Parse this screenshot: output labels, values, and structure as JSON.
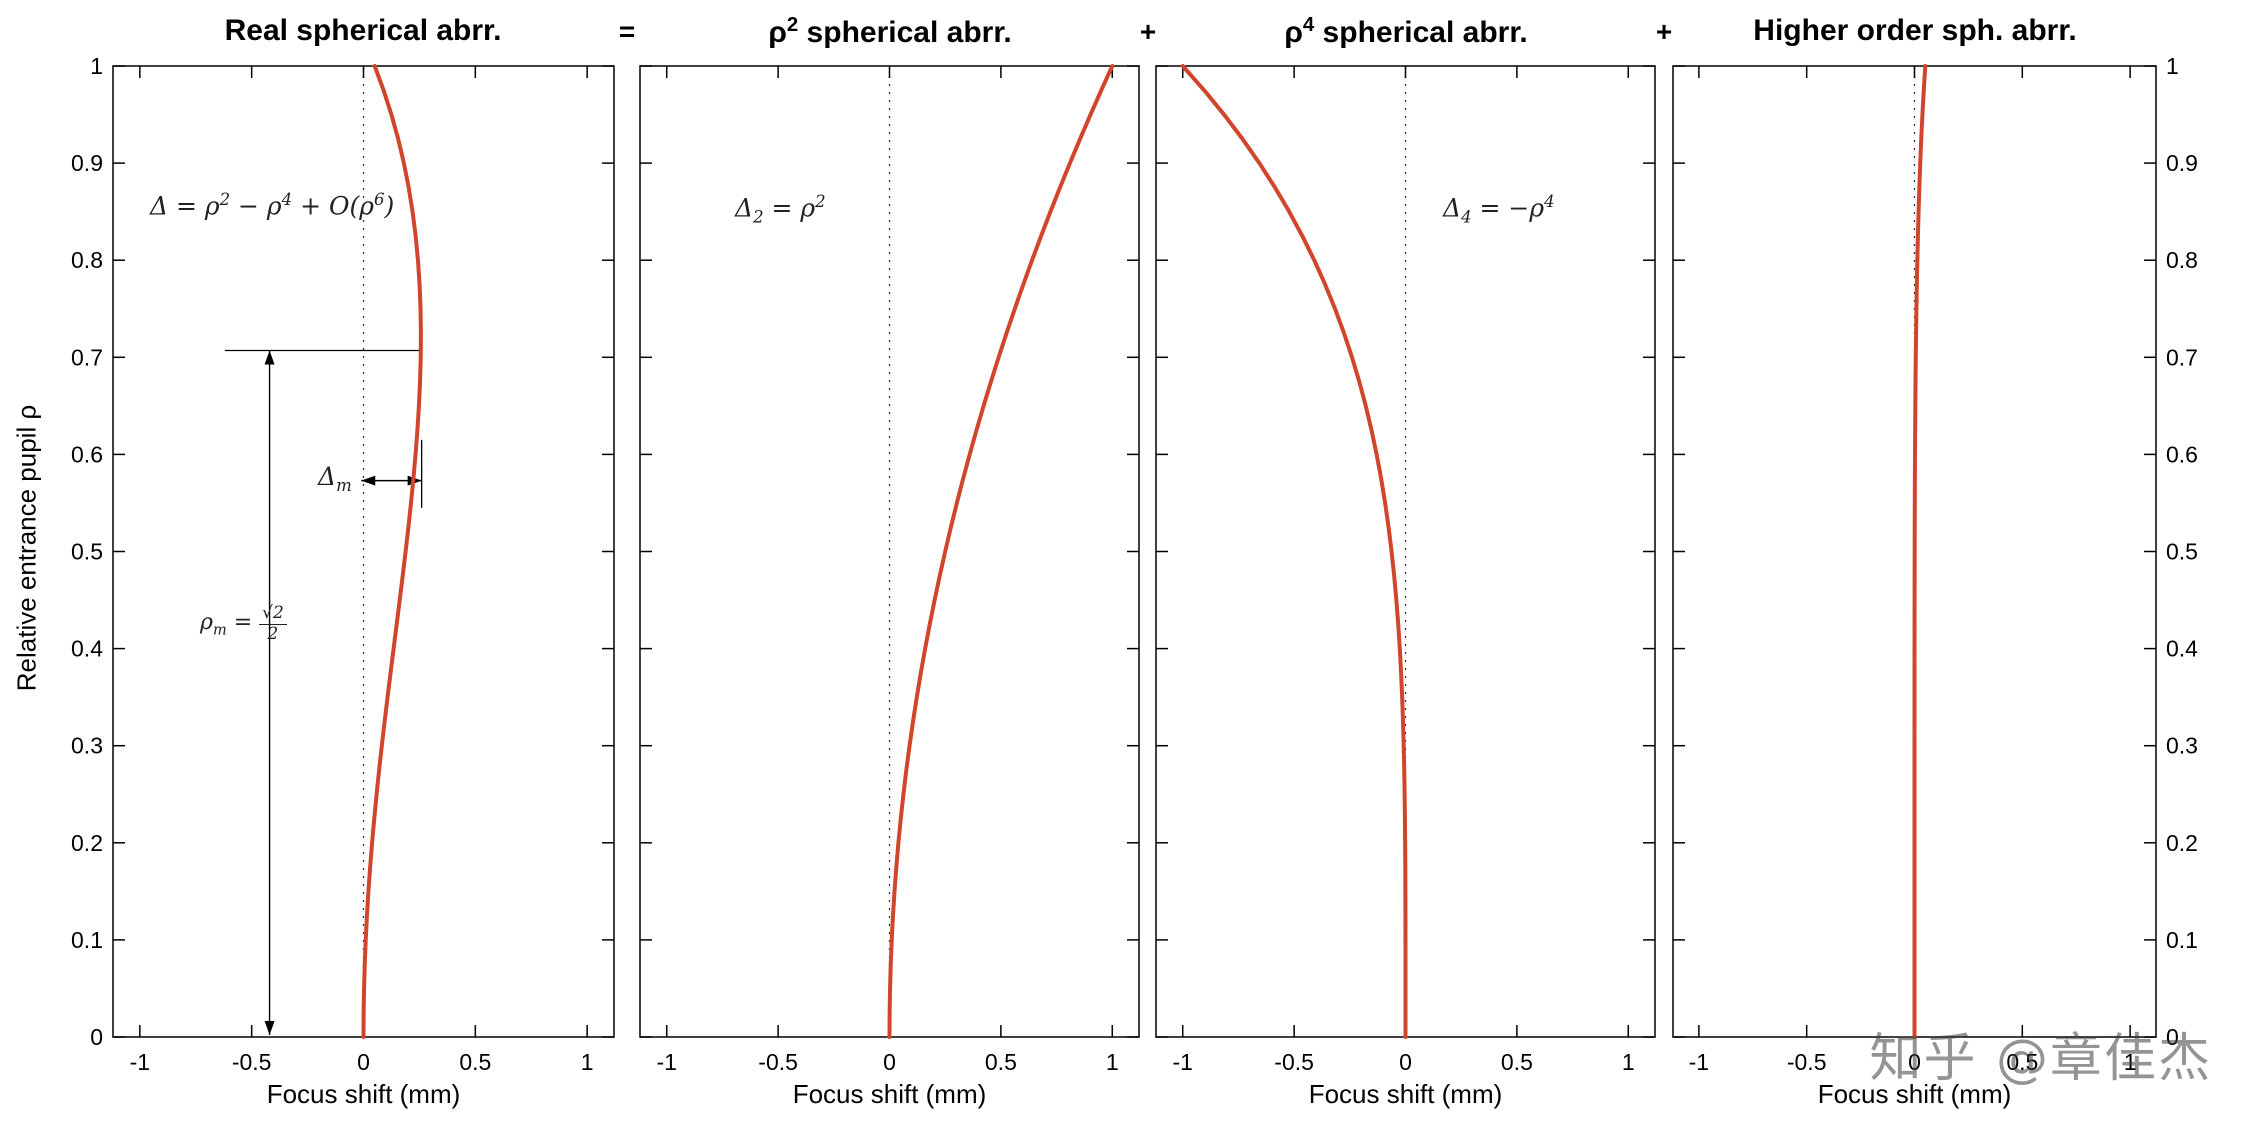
{
  "operators": [
    "=",
    "+",
    "+"
  ],
  "ylabel": "Relative entrance pupil ρ",
  "watermark": "知乎 @章佳杰",
  "curve_color": "#d0452b",
  "chart_data": [
    {
      "type": "line",
      "title": "Real spherical abrr.",
      "xlabel": "Focus shift (mm)",
      "xlim": [
        -1.12,
        1.12
      ],
      "ylim": [
        0,
        1
      ],
      "xticks": [
        -1,
        -0.5,
        0,
        0.5,
        1
      ],
      "xtick_labels": [
        "-1",
        "-0.5",
        "0",
        "0.5",
        "1"
      ],
      "yticks": [
        0,
        0.1,
        0.2,
        0.3,
        0.4,
        0.5,
        0.6,
        0.7,
        0.8,
        0.9,
        1
      ],
      "ytick_labels": [
        "0",
        "0.1",
        "0.2",
        "0.3",
        "0.4",
        "0.5",
        "0.6",
        "0.7",
        "0.8",
        "0.9",
        "1"
      ],
      "zero_line": true,
      "annotation": {
        "text": "Δ = ρ² − ρ⁴ + O(ρ⁶)"
      },
      "extras": {
        "delta_m_label": "Δₘ",
        "rho_m_prefix": "ρₘ =",
        "frac_num": "√2",
        "frac_den": "2",
        "hline": {
          "x1": -0.62,
          "x2": 0.256,
          "y": 0.707
        },
        "varrow": {
          "x": -0.42,
          "y1": 0,
          "y2": 0.707
        },
        "harrow": {
          "y": 0.573,
          "x1": -0.01,
          "x2": 0.26
        },
        "vtick": {
          "x": 0.26,
          "y1": 0.545,
          "y2": 0.615
        }
      },
      "series": [
        {
          "name": "Δ(ρ) = ρ² − ρ⁴ + O(ρ⁶)",
          "rho": [
            0,
            0.025,
            0.05,
            0.075,
            0.1,
            0.125,
            0.15,
            0.175,
            0.2,
            0.225,
            0.25,
            0.275,
            0.3,
            0.325,
            0.35,
            0.375,
            0.4,
            0.425,
            0.45,
            0.475,
            0.5,
            0.525,
            0.55,
            0.575,
            0.6,
            0.625,
            0.65,
            0.675,
            0.7,
            0.725,
            0.75,
            0.775,
            0.8,
            0.825,
            0.85,
            0.875,
            0.9,
            0.925,
            0.95,
            0.975,
            1
          ],
          "x": [
            0,
            0.0006,
            0.0025,
            0.0056,
            0.0099,
            0.0154,
            0.022,
            0.0297,
            0.0384,
            0.0481,
            0.0586,
            0.0699,
            0.0819,
            0.0945,
            0.1076,
            0.121,
            0.1346,
            0.1483,
            0.1619,
            0.1753,
            0.1883,
            0.2007,
            0.2124,
            0.2231,
            0.2327,
            0.241,
            0.2478,
            0.2528,
            0.2558,
            0.2566,
            0.255,
            0.2507,
            0.2435,
            0.2331,
            0.2194,
            0.2019,
            0.1805,
            0.1549,
            0.1247,
            0.0899,
            0.05
          ]
        }
      ]
    },
    {
      "type": "line",
      "title": "ρ² spherical abrr.",
      "xlabel": "Focus shift (mm)",
      "xlim": [
        -1.12,
        1.12
      ],
      "ylim": [
        0,
        1
      ],
      "xticks": [
        -1,
        -0.5,
        0,
        0.5,
        1
      ],
      "xtick_labels": [
        "-1",
        "-0.5",
        "0",
        "0.5",
        "1"
      ],
      "yticks": [
        0,
        0.1,
        0.2,
        0.3,
        0.4,
        0.5,
        0.6,
        0.7,
        0.8,
        0.9,
        1
      ],
      "ytick_labels": [
        "0",
        "0.1",
        "0.2",
        "0.3",
        "0.4",
        "0.5",
        "0.6",
        "0.7",
        "0.8",
        "0.9",
        "1"
      ],
      "zero_line": true,
      "annotation": {
        "text": "Δ₂ = ρ²"
      },
      "series": [
        {
          "name": "Δ₂ = ρ²",
          "rho": [
            0,
            0.025,
            0.05,
            0.075,
            0.1,
            0.125,
            0.15,
            0.175,
            0.2,
            0.225,
            0.25,
            0.275,
            0.3,
            0.325,
            0.35,
            0.375,
            0.4,
            0.425,
            0.45,
            0.475,
            0.5,
            0.525,
            0.55,
            0.575,
            0.6,
            0.625,
            0.65,
            0.675,
            0.7,
            0.725,
            0.75,
            0.775,
            0.8,
            0.825,
            0.85,
            0.875,
            0.9,
            0.925,
            0.95,
            0.975,
            1
          ],
          "x": [
            0,
            0.0006,
            0.0025,
            0.0056,
            0.01,
            0.0156,
            0.0225,
            0.0306,
            0.04,
            0.0506,
            0.0625,
            0.0756,
            0.09,
            0.1056,
            0.1225,
            0.1406,
            0.16,
            0.1806,
            0.2025,
            0.2256,
            0.25,
            0.2756,
            0.3025,
            0.3306,
            0.36,
            0.3906,
            0.4225,
            0.4556,
            0.49,
            0.5256,
            0.5625,
            0.6006,
            0.64,
            0.6806,
            0.7225,
            0.7656,
            0.81,
            0.8556,
            0.9025,
            0.9506,
            1
          ]
        }
      ]
    },
    {
      "type": "line",
      "title": "ρ⁴ spherical abrr.",
      "xlabel": "Focus shift (mm)",
      "xlim": [
        -1.12,
        1.12
      ],
      "ylim": [
        0,
        1
      ],
      "xticks": [
        -1,
        -0.5,
        0,
        0.5,
        1
      ],
      "xtick_labels": [
        "-1",
        "-0.5",
        "0",
        "0.5",
        "1"
      ],
      "yticks": [
        0,
        0.1,
        0.2,
        0.3,
        0.4,
        0.5,
        0.6,
        0.7,
        0.8,
        0.9,
        1
      ],
      "ytick_labels": [
        "0",
        "0.1",
        "0.2",
        "0.3",
        "0.4",
        "0.5",
        "0.6",
        "0.7",
        "0.8",
        "0.9",
        "1"
      ],
      "zero_line": true,
      "annotation": {
        "text": "Δ₄ = −ρ⁴"
      },
      "series": [
        {
          "name": "Δ₄ = −ρ⁴",
          "rho": [
            0,
            0.025,
            0.05,
            0.075,
            0.1,
            0.125,
            0.15,
            0.175,
            0.2,
            0.225,
            0.25,
            0.275,
            0.3,
            0.325,
            0.35,
            0.375,
            0.4,
            0.425,
            0.45,
            0.475,
            0.5,
            0.525,
            0.55,
            0.575,
            0.6,
            0.625,
            0.65,
            0.675,
            0.7,
            0.725,
            0.75,
            0.775,
            0.8,
            0.825,
            0.85,
            0.875,
            0.9,
            0.925,
            0.95,
            0.975,
            1
          ],
          "x": [
            0,
            0,
            0,
            0,
            -0.0001,
            -0.0002,
            -0.0005,
            -0.0009,
            -0.0016,
            -0.0026,
            -0.0039,
            -0.0057,
            -0.0081,
            -0.0112,
            -0.015,
            -0.0198,
            -0.0256,
            -0.0326,
            -0.041,
            -0.0509,
            -0.0625,
            -0.076,
            -0.0915,
            -0.1093,
            -0.1296,
            -0.1526,
            -0.1785,
            -0.2076,
            -0.2401,
            -0.2763,
            -0.3164,
            -0.3608,
            -0.4096,
            -0.4633,
            -0.522,
            -0.5862,
            -0.6561,
            -0.7321,
            -0.8145,
            -0.9037,
            -1
          ]
        }
      ]
    },
    {
      "type": "line",
      "title": "Higher order sph. abrr.",
      "xlabel": "Focus shift (mm)",
      "xlim": [
        -1.12,
        1.12
      ],
      "ylim": [
        0,
        1
      ],
      "xticks": [
        -1,
        -0.5,
        0,
        0.5,
        1
      ],
      "xtick_labels": [
        "-1",
        "-0.5",
        "0",
        "0.5",
        "1"
      ],
      "yticks": [
        0,
        0.1,
        0.2,
        0.3,
        0.4,
        0.5,
        0.6,
        0.7,
        0.8,
        0.9,
        1
      ],
      "ytick_labels": [
        "0",
        "0.1",
        "0.2",
        "0.3",
        "0.4",
        "0.5",
        "0.6",
        "0.7",
        "0.8",
        "0.9",
        "1"
      ],
      "zero_line": true,
      "series": [
        {
          "name": "O(ρ⁶)",
          "rho": [
            0,
            0.025,
            0.05,
            0.075,
            0.1,
            0.125,
            0.15,
            0.175,
            0.2,
            0.225,
            0.25,
            0.275,
            0.3,
            0.325,
            0.35,
            0.375,
            0.4,
            0.425,
            0.45,
            0.475,
            0.5,
            0.525,
            0.55,
            0.575,
            0.6,
            0.625,
            0.65,
            0.675,
            0.7,
            0.725,
            0.75,
            0.775,
            0.8,
            0.825,
            0.85,
            0.875,
            0.9,
            0.925,
            0.95,
            0.975,
            1
          ],
          "x": [
            0,
            0,
            0,
            0,
            0,
            0,
            0,
            0,
            0,
            0,
            0,
            0,
            0,
            0.0001,
            0.0001,
            0.0001,
            0.0002,
            0.0003,
            0.0004,
            0.0006,
            0.0008,
            0.001,
            0.0014,
            0.0018,
            0.0023,
            0.003,
            0.0038,
            0.0047,
            0.0059,
            0.0073,
            0.0089,
            0.0108,
            0.0131,
            0.0158,
            0.0189,
            0.0224,
            0.0266,
            0.0313,
            0.0368,
            0.043,
            0.05
          ]
        }
      ]
    }
  ]
}
